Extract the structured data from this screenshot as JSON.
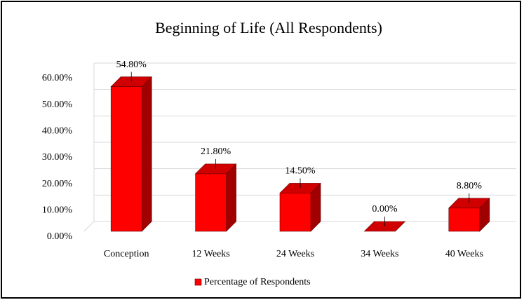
{
  "chart_data": {
    "type": "bar3d",
    "title": "Beginning of Life (All Respondents)",
    "categories": [
      "Conception",
      "12 Weeks",
      "24 Weeks",
      "34 Weeks",
      "40 Weeks"
    ],
    "series": [
      {
        "name": "Percentage of Respondents",
        "color": "#ff0000",
        "values": [
          54.8,
          21.8,
          14.5,
          0,
          8.8
        ],
        "value_labels": [
          "54.80%",
          "21.80%",
          "14.50%",
          "0.00%",
          "8.80%"
        ]
      }
    ],
    "ylim": [
      0,
      60
    ],
    "yticks": [
      {
        "value": 0,
        "label": "0.00%"
      },
      {
        "value": 10,
        "label": "10.00%"
      },
      {
        "value": 20,
        "label": "20.00%"
      },
      {
        "value": 30,
        "label": "30.00%"
      },
      {
        "value": 40,
        "label": "40.00%"
      },
      {
        "value": 50,
        "label": "50.00%"
      },
      {
        "value": 60,
        "label": "60.00%"
      }
    ],
    "grid": true,
    "legend": "bottom"
  }
}
